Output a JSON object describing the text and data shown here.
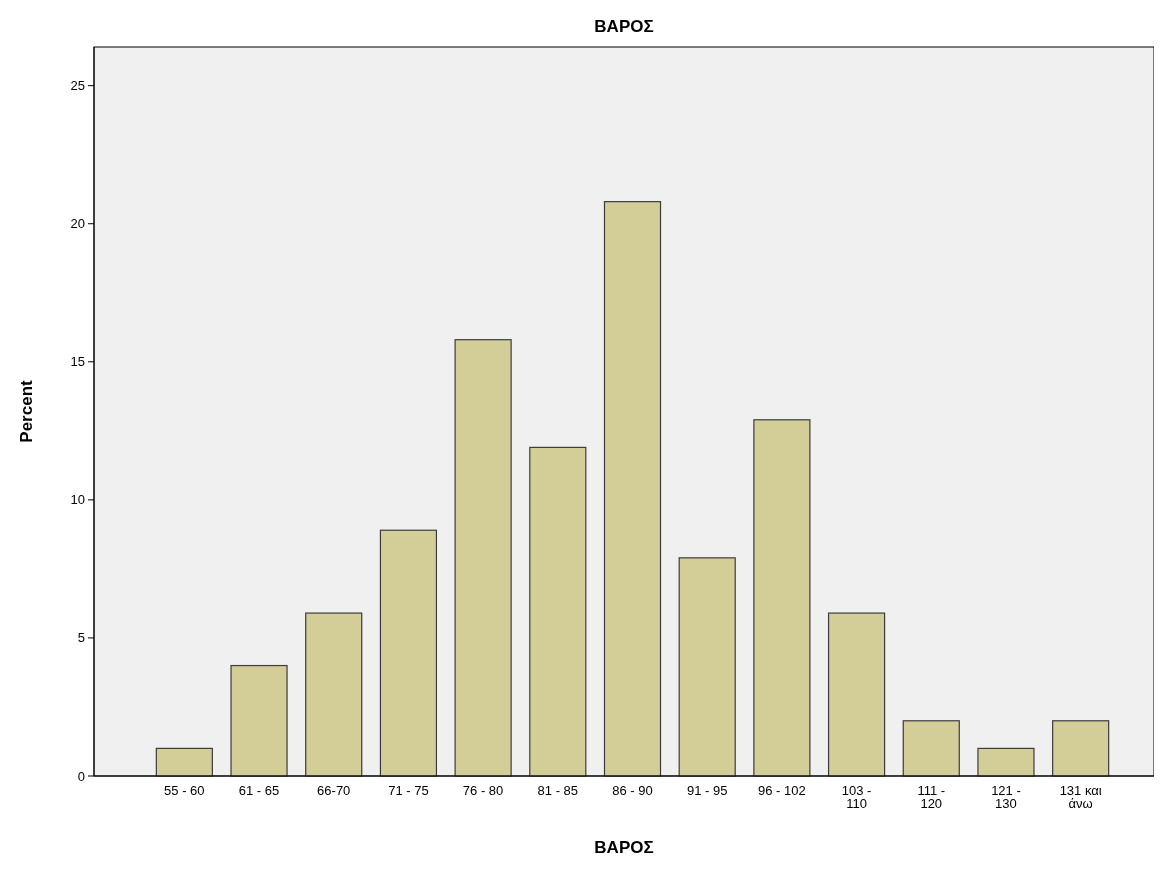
{
  "chart_data": {
    "type": "bar",
    "title": "ΒΑΡΟΣ",
    "xlabel": "ΒΑΡΟΣ",
    "ylabel": "Percent",
    "categories": [
      "55 - 60",
      "61 - 65",
      "66-70",
      "71 - 75",
      "76 - 80",
      "81 - 85",
      "86 - 90",
      "91 - 95",
      "96 - 102",
      "103 - 110",
      "111 - 120",
      "121 - 130",
      "131 και άνω"
    ],
    "values": [
      1.0,
      4.0,
      5.9,
      8.9,
      15.8,
      11.9,
      20.8,
      7.9,
      12.9,
      5.9,
      2.0,
      1.0,
      2.0
    ],
    "color": "#d3ce97",
    "ylim": [
      0,
      26.4
    ],
    "yticks": [
      0,
      5,
      10,
      15,
      20,
      25
    ],
    "grid": false
  }
}
